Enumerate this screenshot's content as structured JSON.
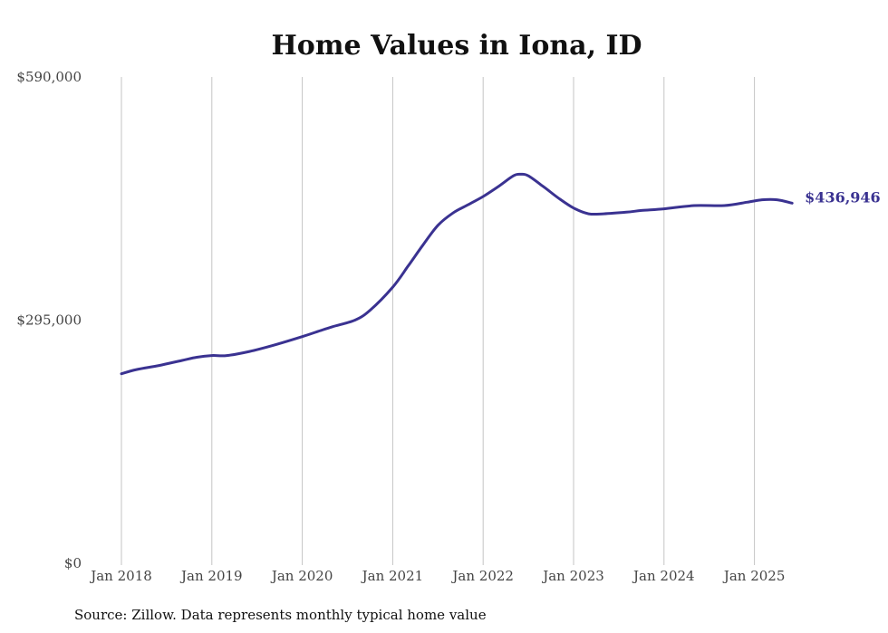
{
  "chart_data": {
    "type": "line",
    "title": "Home Values in Iona, ID",
    "source": "Source: Zillow. Data represents monthly typical home value",
    "ylim": [
      0,
      590000
    ],
    "y_ticks": [
      {
        "value": 0,
        "label": "$0"
      },
      {
        "value": 295000,
        "label": "$295,000"
      },
      {
        "value": 590000,
        "label": "$590,000"
      }
    ],
    "x_ticks": [
      {
        "date": "2018-01",
        "label": "Jan 2018"
      },
      {
        "date": "2019-01",
        "label": "Jan 2019"
      },
      {
        "date": "2020-01",
        "label": "Jan 2020"
      },
      {
        "date": "2021-01",
        "label": "Jan 2021"
      },
      {
        "date": "2022-01",
        "label": "Jan 2022"
      },
      {
        "date": "2023-01",
        "label": "Jan 2023"
      },
      {
        "date": "2024-01",
        "label": "Jan 2024"
      },
      {
        "date": "2025-01",
        "label": "Jan 2025"
      }
    ],
    "grid": {
      "vertical": true,
      "horizontal": false
    },
    "line_color": "#3a3291",
    "end_label": "$436,946",
    "series": [
      {
        "points": [
          {
            "x": "2018-01",
            "y": 230000
          },
          {
            "x": "2018-03",
            "y": 235000
          },
          {
            "x": "2018-06",
            "y": 240000
          },
          {
            "x": "2018-09",
            "y": 246000
          },
          {
            "x": "2018-11",
            "y": 250000
          },
          {
            "x": "2019-01",
            "y": 252000
          },
          {
            "x": "2019-03",
            "y": 252000
          },
          {
            "x": "2019-06",
            "y": 257000
          },
          {
            "x": "2019-09",
            "y": 264000
          },
          {
            "x": "2020-01",
            "y": 275000
          },
          {
            "x": "2020-03",
            "y": 281000
          },
          {
            "x": "2020-05",
            "y": 287000
          },
          {
            "x": "2020-08",
            "y": 295000
          },
          {
            "x": "2020-10",
            "y": 307000
          },
          {
            "x": "2021-01",
            "y": 335000
          },
          {
            "x": "2021-03",
            "y": 360000
          },
          {
            "x": "2021-05",
            "y": 386000
          },
          {
            "x": "2021-07",
            "y": 410000
          },
          {
            "x": "2021-09",
            "y": 425000
          },
          {
            "x": "2021-11",
            "y": 435000
          },
          {
            "x": "2022-01",
            "y": 445000
          },
          {
            "x": "2022-03",
            "y": 457000
          },
          {
            "x": "2022-05",
            "y": 470000
          },
          {
            "x": "2022-06",
            "y": 472000
          },
          {
            "x": "2022-07",
            "y": 470000
          },
          {
            "x": "2022-09",
            "y": 457000
          },
          {
            "x": "2022-11",
            "y": 443000
          },
          {
            "x": "2023-01",
            "y": 431000
          },
          {
            "x": "2023-03",
            "y": 424000
          },
          {
            "x": "2023-05",
            "y": 424000
          },
          {
            "x": "2023-08",
            "y": 426000
          },
          {
            "x": "2023-10",
            "y": 428000
          },
          {
            "x": "2024-01",
            "y": 430000
          },
          {
            "x": "2024-05",
            "y": 434000
          },
          {
            "x": "2024-09",
            "y": 434000
          },
          {
            "x": "2024-12",
            "y": 438000
          },
          {
            "x": "2025-02",
            "y": 441000
          },
          {
            "x": "2025-04",
            "y": 441000
          },
          {
            "x": "2025-06",
            "y": 436946
          }
        ]
      }
    ]
  }
}
